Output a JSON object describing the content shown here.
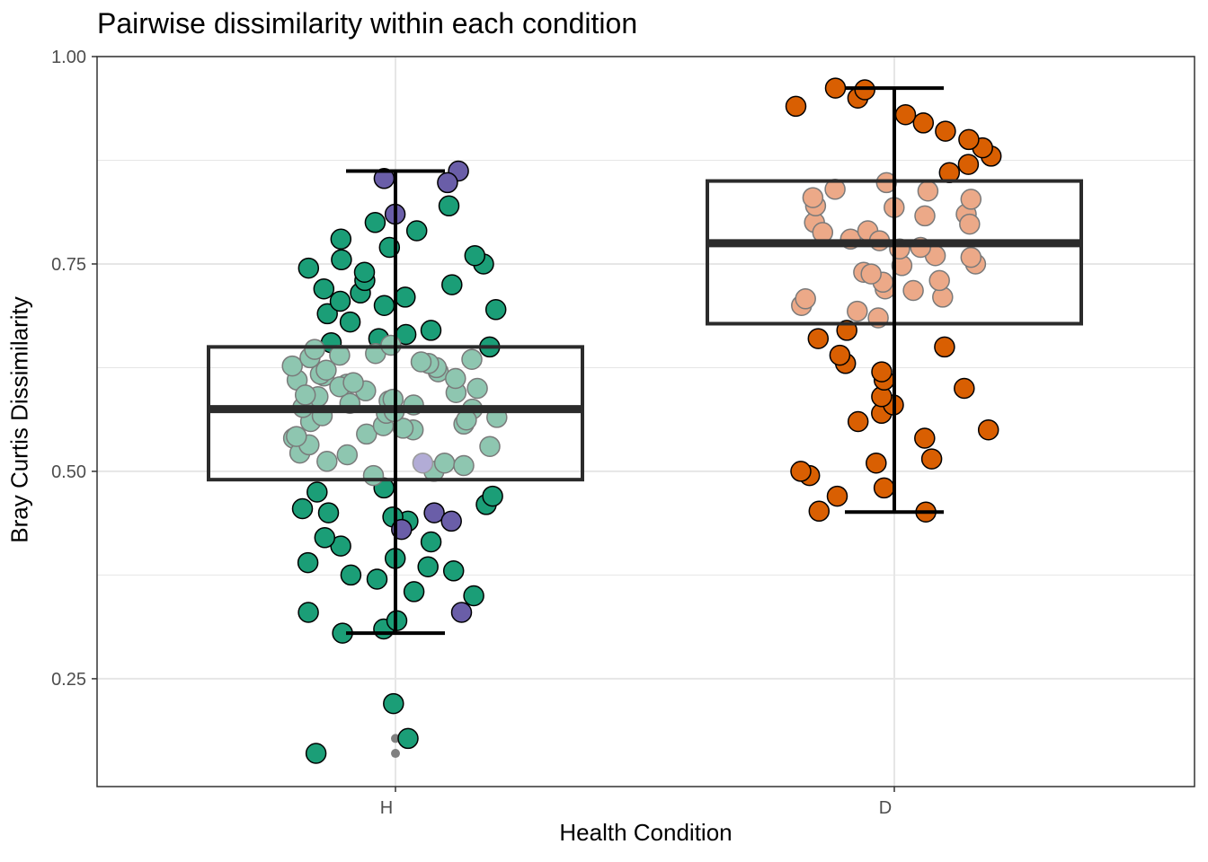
{
  "chart_data": {
    "type": "boxplot",
    "title": "Pairwise dissimilarity within each condition",
    "xlabel": "Health Condition",
    "ylabel": "Bray Curtis Dissimilarity",
    "categories": [
      "H",
      "D"
    ],
    "ylim": [
      0.12,
      1.0
    ],
    "yticks": [
      0.25,
      0.5,
      0.75,
      1.0
    ],
    "ytick_labels": [
      "0.25",
      "0.50",
      "0.75",
      "1.00"
    ],
    "grid": true,
    "boxes": [
      {
        "category": "H",
        "q1": 0.49,
        "median": 0.575,
        "q3": 0.65,
        "whisker_low": 0.305,
        "whisker_high": 0.862,
        "outliers": [
          0.22,
          0.178,
          0.16
        ]
      },
      {
        "category": "D",
        "q1": 0.678,
        "median": 0.775,
        "q3": 0.85,
        "whisker_low": 0.451,
        "whisker_high": 0.962,
        "outliers": []
      }
    ],
    "points": {
      "H": {
        "main": [
          0.22,
          0.178,
          0.16,
          0.305,
          0.31,
          0.32,
          0.33,
          0.35,
          0.355,
          0.37,
          0.375,
          0.38,
          0.385,
          0.39,
          0.395,
          0.41,
          0.415,
          0.42,
          0.44,
          0.445,
          0.45,
          0.455,
          0.46,
          0.47,
          0.475,
          0.48,
          0.65,
          0.655,
          0.66,
          0.665,
          0.67,
          0.68,
          0.69,
          0.695,
          0.7,
          0.705,
          0.71,
          0.715,
          0.72,
          0.725,
          0.73,
          0.74,
          0.745,
          0.75,
          0.755,
          0.76,
          0.77,
          0.78,
          0.79,
          0.8,
          0.82
        ],
        "box_interior": [
          0.495,
          0.5,
          0.51,
          0.52,
          0.53,
          0.54,
          0.545,
          0.55,
          0.555,
          0.56,
          0.565,
          0.57,
          0.575,
          0.58,
          0.585,
          0.59,
          0.595,
          0.6,
          0.605,
          0.61,
          0.615,
          0.62,
          0.625,
          0.63,
          0.635,
          0.64
        ],
        "highlight": [
          0.862,
          0.848,
          0.853,
          0.81,
          0.51,
          0.45,
          0.44,
          0.43,
          0.33
        ]
      },
      "D": {
        "main": [
          0.451,
          0.452,
          0.47,
          0.48,
          0.495,
          0.5,
          0.51,
          0.515,
          0.54,
          0.55,
          0.56,
          0.57,
          0.58,
          0.59,
          0.6,
          0.61,
          0.62,
          0.63,
          0.64,
          0.65,
          0.66,
          0.67,
          0.86,
          0.87,
          0.88,
          0.89,
          0.9,
          0.91,
          0.92,
          0.93,
          0.94,
          0.95,
          0.96,
          0.962
        ],
        "box_interior": [
          0.685,
          0.7,
          0.71,
          0.72,
          0.73,
          0.74,
          0.75,
          0.76,
          0.77,
          0.78,
          0.79,
          0.8,
          0.81,
          0.82,
          0.83,
          0.84
        ]
      }
    },
    "colors": {
      "H_main": "#1b9e77",
      "H_box_interior": "#8ec6b0",
      "H_highlight": "#6a5ea8",
      "H_highlight_interior": "#b2acd6",
      "D_main": "#d95f02",
      "D_box_interior": "#eca988",
      "outlier": "#808080",
      "box": "#2b2b2b",
      "grid": "#e6e6e6"
    }
  }
}
